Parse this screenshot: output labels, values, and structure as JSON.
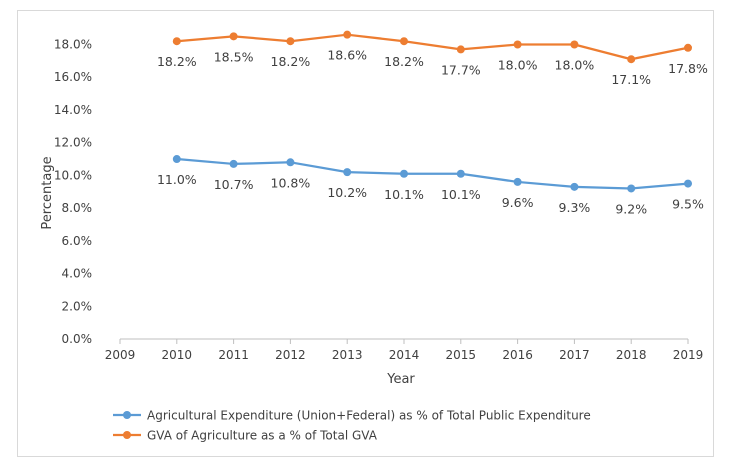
{
  "chart_data": {
    "type": "line",
    "title": "",
    "xlabel": "Year",
    "ylabel": "Percentage",
    "x_ticks": [
      "2009",
      "2010",
      "2011",
      "2012",
      "2013",
      "2014",
      "2015",
      "2016",
      "2017",
      "2018",
      "2019"
    ],
    "y_ticks": [
      "0.0%",
      "2.0%",
      "4.0%",
      "6.0%",
      "8.0%",
      "10.0%",
      "12.0%",
      "14.0%",
      "16.0%",
      "18.0%"
    ],
    "xlim": [
      2009,
      2019
    ],
    "ylim": [
      0,
      18
    ],
    "grid": false,
    "legend_position": "bottom",
    "series": [
      {
        "name": "Agricultural Expenditure (Union+Federal) as % of Total Public Expenditure",
        "color": "#5b9bd5",
        "x": [
          2010,
          2011,
          2012,
          2013,
          2014,
          2015,
          2016,
          2017,
          2018,
          2019
        ],
        "values": [
          11.0,
          10.7,
          10.8,
          10.2,
          10.1,
          10.1,
          9.6,
          9.3,
          9.2,
          9.5
        ],
        "labels": [
          "11.0%",
          "10.7%",
          "10.8%",
          "10.2%",
          "10.1%",
          "10.1%",
          "9.6%",
          "9.3%",
          "9.2%",
          "9.5%"
        ]
      },
      {
        "name": "GVA of Agriculture as a % of Total GVA",
        "color": "#ed7d31",
        "x": [
          2010,
          2011,
          2012,
          2013,
          2014,
          2015,
          2016,
          2017,
          2018,
          2019
        ],
        "values": [
          18.2,
          18.5,
          18.2,
          18.6,
          18.2,
          17.7,
          18.0,
          18.0,
          17.1,
          17.8
        ],
        "labels": [
          "18.2%",
          "18.5%",
          "18.2%",
          "18.6%",
          "18.2%",
          "17.7%",
          "18.0%",
          "18.0%",
          "17.1%",
          "17.8%"
        ]
      }
    ]
  }
}
